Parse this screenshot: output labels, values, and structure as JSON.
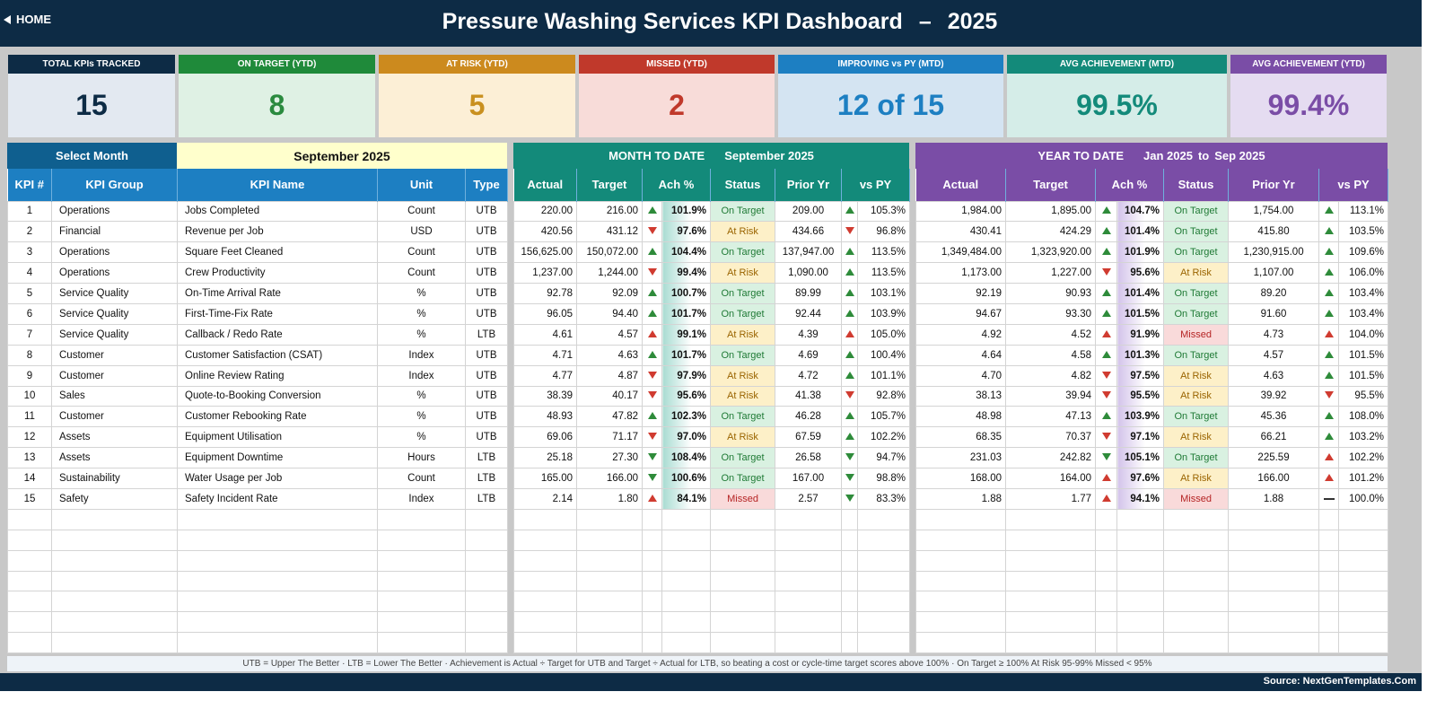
{
  "header": {
    "home_label": "HOME",
    "title": "Pressure Washing Services KPI Dashboard",
    "dash": "–",
    "year": "2025"
  },
  "cards": [
    {
      "label": "TOTAL KPIs TRACKED",
      "value": "15",
      "head_color": "#0d2b45",
      "bg": "#e3e9f1",
      "fg": "#0d2b45"
    },
    {
      "label": "ON TARGET (YTD)",
      "value": "8",
      "head_color": "#1f8a3a",
      "bg": "#dff1e4",
      "fg": "#2a8a3e"
    },
    {
      "label": "AT RISK (YTD)",
      "value": "5",
      "head_color": "#cc8a1e",
      "bg": "#fcefd6",
      "fg": "#c9901f"
    },
    {
      "label": "MISSED (YTD)",
      "value": "2",
      "head_color": "#c0392b",
      "bg": "#f8dcd9",
      "fg": "#c0392b"
    },
    {
      "label": "IMPROVING vs PY (MTD)",
      "value": "12 of 15",
      "head_color": "#1d7fc2",
      "bg": "#d4e4f2",
      "fg": "#1d7fc2"
    },
    {
      "label": "AVG ACHIEVEMENT (MTD)",
      "value": "99.5%",
      "head_color": "#138a7a",
      "bg": "#d5ede8",
      "fg": "#138a7a"
    },
    {
      "label": "AVG ACHIEVEMENT (YTD)",
      "value": "99.4%",
      "head_color": "#7a4da6",
      "bg": "#e5dcf1",
      "fg": "#7a4da6"
    }
  ],
  "select": {
    "label": "Select Month",
    "value": "September 2025"
  },
  "mtd": {
    "title": "MONTH TO DATE",
    "period": "September 2025"
  },
  "ytd": {
    "title": "YEAR TO DATE",
    "period_from": "Jan 2025",
    "to": "to",
    "period_to": "Sep 2025"
  },
  "columns": {
    "left": [
      "KPI #",
      "KPI Group",
      "KPI Name",
      "Unit",
      "Type"
    ],
    "mtd": [
      "Actual",
      "Target",
      "Ach %",
      "Status",
      "Prior Yr",
      "vs PY"
    ],
    "ytd": [
      "Actual",
      "Target",
      "Ach %",
      "Status",
      "Prior Yr",
      "vs PY"
    ]
  },
  "rows": [
    {
      "n": "1",
      "group": "Operations",
      "name": "Jobs Completed",
      "unit": "Count",
      "type": "UTB",
      "m": [
        "220.00",
        "216.00",
        "up",
        "101.9%",
        "On Target",
        "209.00",
        "up",
        "105.3%"
      ],
      "y": [
        "1,984.00",
        "1,895.00",
        "up",
        "104.7%",
        "On Target",
        "1,754.00",
        "up",
        "113.1%"
      ]
    },
    {
      "n": "2",
      "group": "Financial",
      "name": "Revenue per Job",
      "unit": "USD",
      "type": "UTB",
      "m": [
        "420.56",
        "431.12",
        "dn",
        "97.6%",
        "At Risk",
        "434.66",
        "dn",
        "96.8%"
      ],
      "y": [
        "430.41",
        "424.29",
        "up",
        "101.4%",
        "On Target",
        "415.80",
        "up",
        "103.5%"
      ]
    },
    {
      "n": "3",
      "group": "Operations",
      "name": "Square Feet Cleaned",
      "unit": "Count",
      "type": "UTB",
      "m": [
        "156,625.00",
        "150,072.00",
        "up",
        "104.4%",
        "On Target",
        "137,947.00",
        "up",
        "113.5%"
      ],
      "y": [
        "1,349,484.00",
        "1,323,920.00",
        "up",
        "101.9%",
        "On Target",
        "1,230,915.00",
        "up",
        "109.6%"
      ]
    },
    {
      "n": "4",
      "group": "Operations",
      "name": "Crew Productivity",
      "unit": "Count",
      "type": "UTB",
      "m": [
        "1,237.00",
        "1,244.00",
        "dn",
        "99.4%",
        "At Risk",
        "1,090.00",
        "up",
        "113.5%"
      ],
      "y": [
        "1,173.00",
        "1,227.00",
        "dn",
        "95.6%",
        "At Risk",
        "1,107.00",
        "up",
        "106.0%"
      ]
    },
    {
      "n": "5",
      "group": "Service Quality",
      "name": "On-Time Arrival Rate",
      "unit": "%",
      "type": "UTB",
      "m": [
        "92.78",
        "92.09",
        "up",
        "100.7%",
        "On Target",
        "89.99",
        "up",
        "103.1%"
      ],
      "y": [
        "92.19",
        "90.93",
        "up",
        "101.4%",
        "On Target",
        "89.20",
        "up",
        "103.4%"
      ]
    },
    {
      "n": "6",
      "group": "Service Quality",
      "name": "First-Time-Fix Rate",
      "unit": "%",
      "type": "UTB",
      "m": [
        "96.05",
        "94.40",
        "up",
        "101.7%",
        "On Target",
        "92.44",
        "up",
        "103.9%"
      ],
      "y": [
        "94.67",
        "93.30",
        "up",
        "101.5%",
        "On Target",
        "91.60",
        "up",
        "103.4%"
      ]
    },
    {
      "n": "7",
      "group": "Service Quality",
      "name": "Callback / Redo Rate",
      "unit": "%",
      "type": "LTB",
      "m": [
        "4.61",
        "4.57",
        "upr",
        "99.1%",
        "At Risk",
        "4.39",
        "upr",
        "105.0%"
      ],
      "y": [
        "4.92",
        "4.52",
        "upr",
        "91.9%",
        "Missed",
        "4.73",
        "upr",
        "104.0%"
      ]
    },
    {
      "n": "8",
      "group": "Customer",
      "name": "Customer Satisfaction (CSAT)",
      "unit": "Index",
      "type": "UTB",
      "m": [
        "4.71",
        "4.63",
        "up",
        "101.7%",
        "On Target",
        "4.69",
        "up",
        "100.4%"
      ],
      "y": [
        "4.64",
        "4.58",
        "up",
        "101.3%",
        "On Target",
        "4.57",
        "up",
        "101.5%"
      ]
    },
    {
      "n": "9",
      "group": "Customer",
      "name": "Online Review Rating",
      "unit": "Index",
      "type": "UTB",
      "m": [
        "4.77",
        "4.87",
        "dn",
        "97.9%",
        "At Risk",
        "4.72",
        "up",
        "101.1%"
      ],
      "y": [
        "4.70",
        "4.82",
        "dn",
        "97.5%",
        "At Risk",
        "4.63",
        "up",
        "101.5%"
      ]
    },
    {
      "n": "10",
      "group": "Sales",
      "name": "Quote-to-Booking Conversion",
      "unit": "%",
      "type": "UTB",
      "m": [
        "38.39",
        "40.17",
        "dn",
        "95.6%",
        "At Risk",
        "41.38",
        "dn",
        "92.8%"
      ],
      "y": [
        "38.13",
        "39.94",
        "dn",
        "95.5%",
        "At Risk",
        "39.92",
        "dn",
        "95.5%"
      ]
    },
    {
      "n": "11",
      "group": "Customer",
      "name": "Customer Rebooking Rate",
      "unit": "%",
      "type": "UTB",
      "m": [
        "48.93",
        "47.82",
        "up",
        "102.3%",
        "On Target",
        "46.28",
        "up",
        "105.7%"
      ],
      "y": [
        "48.98",
        "47.13",
        "up",
        "103.9%",
        "On Target",
        "45.36",
        "up",
        "108.0%"
      ]
    },
    {
      "n": "12",
      "group": "Assets",
      "name": "Equipment Utilisation",
      "unit": "%",
      "type": "UTB",
      "m": [
        "69.06",
        "71.17",
        "dn",
        "97.0%",
        "At Risk",
        "67.59",
        "up",
        "102.2%"
      ],
      "y": [
        "68.35",
        "70.37",
        "dn",
        "97.1%",
        "At Risk",
        "66.21",
        "up",
        "103.2%"
      ]
    },
    {
      "n": "13",
      "group": "Assets",
      "name": "Equipment Downtime",
      "unit": "Hours",
      "type": "LTB",
      "m": [
        "25.18",
        "27.30",
        "dng",
        "108.4%",
        "On Target",
        "26.58",
        "dng",
        "94.7%"
      ],
      "y": [
        "231.03",
        "242.82",
        "dng",
        "105.1%",
        "On Target",
        "225.59",
        "upr",
        "102.2%"
      ]
    },
    {
      "n": "14",
      "group": "Sustainability",
      "name": "Water Usage per Job",
      "unit": "Count",
      "type": "LTB",
      "m": [
        "165.00",
        "166.00",
        "dng",
        "100.6%",
        "On Target",
        "167.00",
        "dng",
        "98.8%"
      ],
      "y": [
        "168.00",
        "164.00",
        "upr",
        "97.6%",
        "At Risk",
        "166.00",
        "upr",
        "101.2%"
      ]
    },
    {
      "n": "15",
      "group": "Safety",
      "name": "Safety Incident Rate",
      "unit": "Index",
      "type": "LTB",
      "m": [
        "2.14",
        "1.80",
        "upr",
        "84.1%",
        "Missed",
        "2.57",
        "dng",
        "83.3%"
      ],
      "y": [
        "1.88",
        "1.77",
        "upr",
        "94.1%",
        "Missed",
        "1.88",
        "flat",
        "100.0%"
      ]
    }
  ],
  "footer": "UTB = Upper The Better   ·   LTB = Lower The Better   ·   Achievement is Actual ÷ Target for UTB and Target ÷ Actual for LTB, so beating a cost or cycle-time target scores above 100%   ·   On Target ≥ 100%    At Risk 95-99%    Missed < 95%",
  "source": "Source: NextGenTemplates.Com",
  "colors": {
    "navy": "#0d2b45",
    "blue_header": "#1d7fc2",
    "teal_header": "#138a7a",
    "purple_header": "#7a4da6",
    "select_label_bg": "#0f5f8f",
    "select_value_bg": "#ffffcc"
  }
}
